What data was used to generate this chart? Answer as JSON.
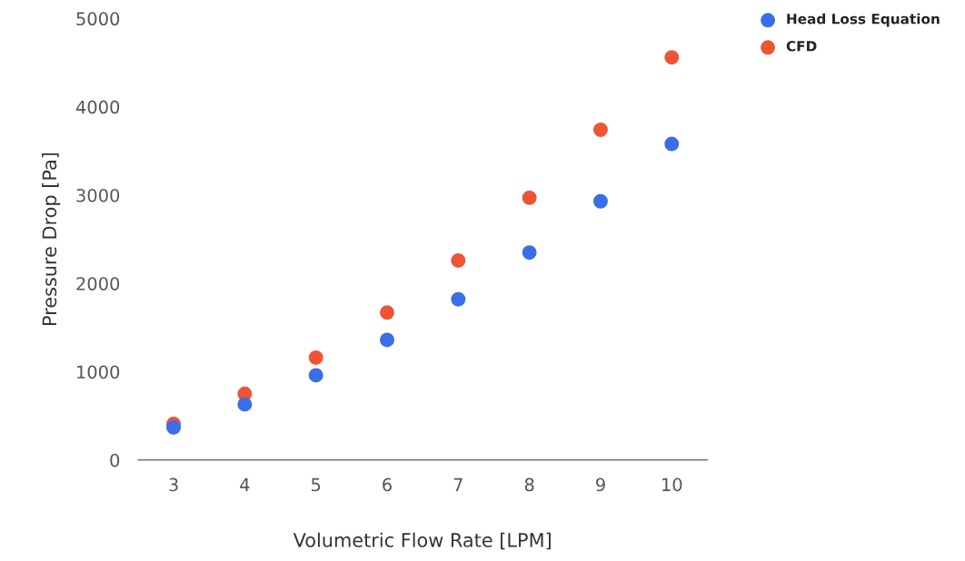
{
  "chart_data": {
    "type": "scatter",
    "xlabel": "Volumetric Flow Rate [LPM]",
    "ylabel": "Pressure Drop [Pa]",
    "x": [
      3,
      4,
      5,
      6,
      7,
      8,
      9,
      10
    ],
    "series": [
      {
        "name": "Head Loss Equation",
        "color": "#3a6ee8",
        "values": [
          370,
          630,
          960,
          1360,
          1820,
          2350,
          2930,
          3580
        ]
      },
      {
        "name": "CFD",
        "color": "#ee5535",
        "values": [
          410,
          750,
          1160,
          1670,
          2260,
          2970,
          3740,
          4560
        ]
      }
    ],
    "xlim": [
      2.5,
      10.5
    ],
    "xticks": [
      3,
      4,
      5,
      6,
      7,
      8,
      9,
      10
    ],
    "ylim": [
      0,
      5000
    ],
    "yticks": [
      0,
      1000,
      2000,
      3000,
      4000,
      5000
    ],
    "grid": false,
    "legend": "top right",
    "marker": "circle"
  }
}
